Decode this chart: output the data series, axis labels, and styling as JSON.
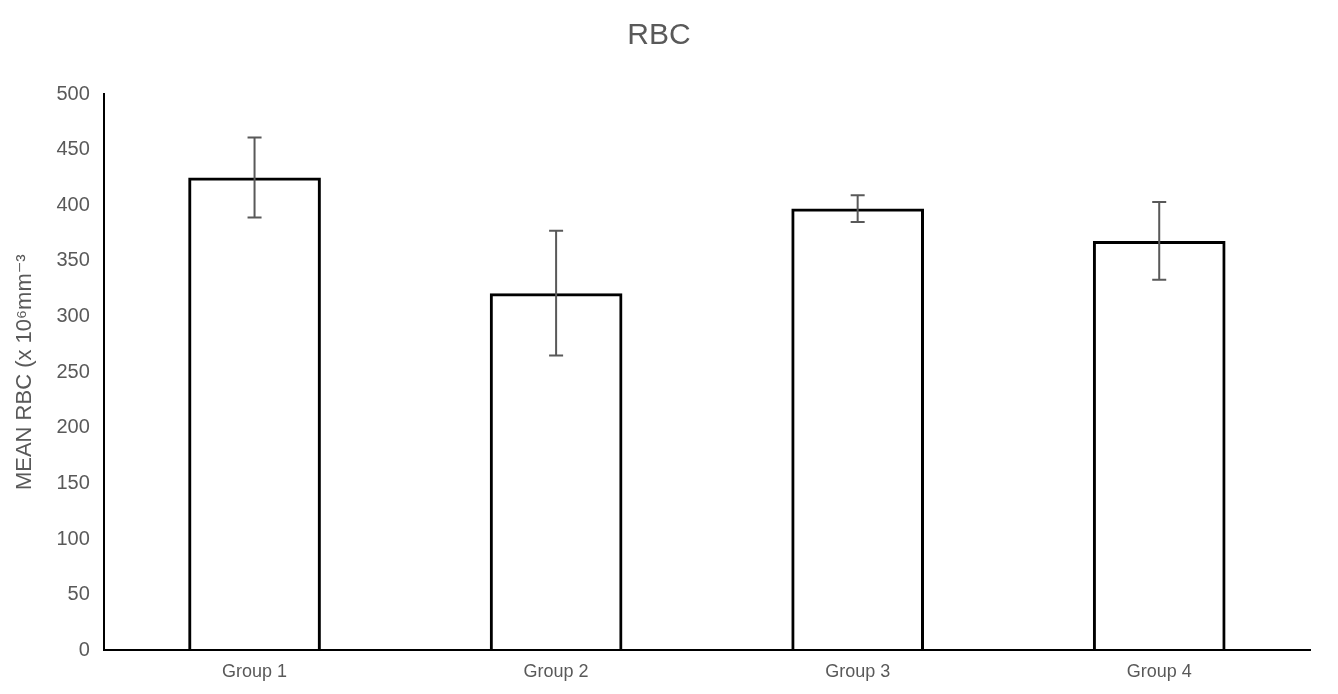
{
  "chart_data": {
    "type": "bar",
    "title": "RBC",
    "ylabel": "MEAN RBC (x 10⁶mm⁻³",
    "categories": [
      "Group 1",
      "Group 2",
      "Group 3",
      "Group 4"
    ],
    "values": [
      425,
      321,
      397,
      368
    ],
    "errors": [
      36,
      56,
      12,
      35
    ],
    "color": "#000000",
    "ylim": [
      0,
      500
    ],
    "yticks": [
      0,
      50,
      100,
      150,
      200,
      250,
      300,
      350,
      400,
      450,
      500
    ],
    "grid": false,
    "legend": false
  }
}
